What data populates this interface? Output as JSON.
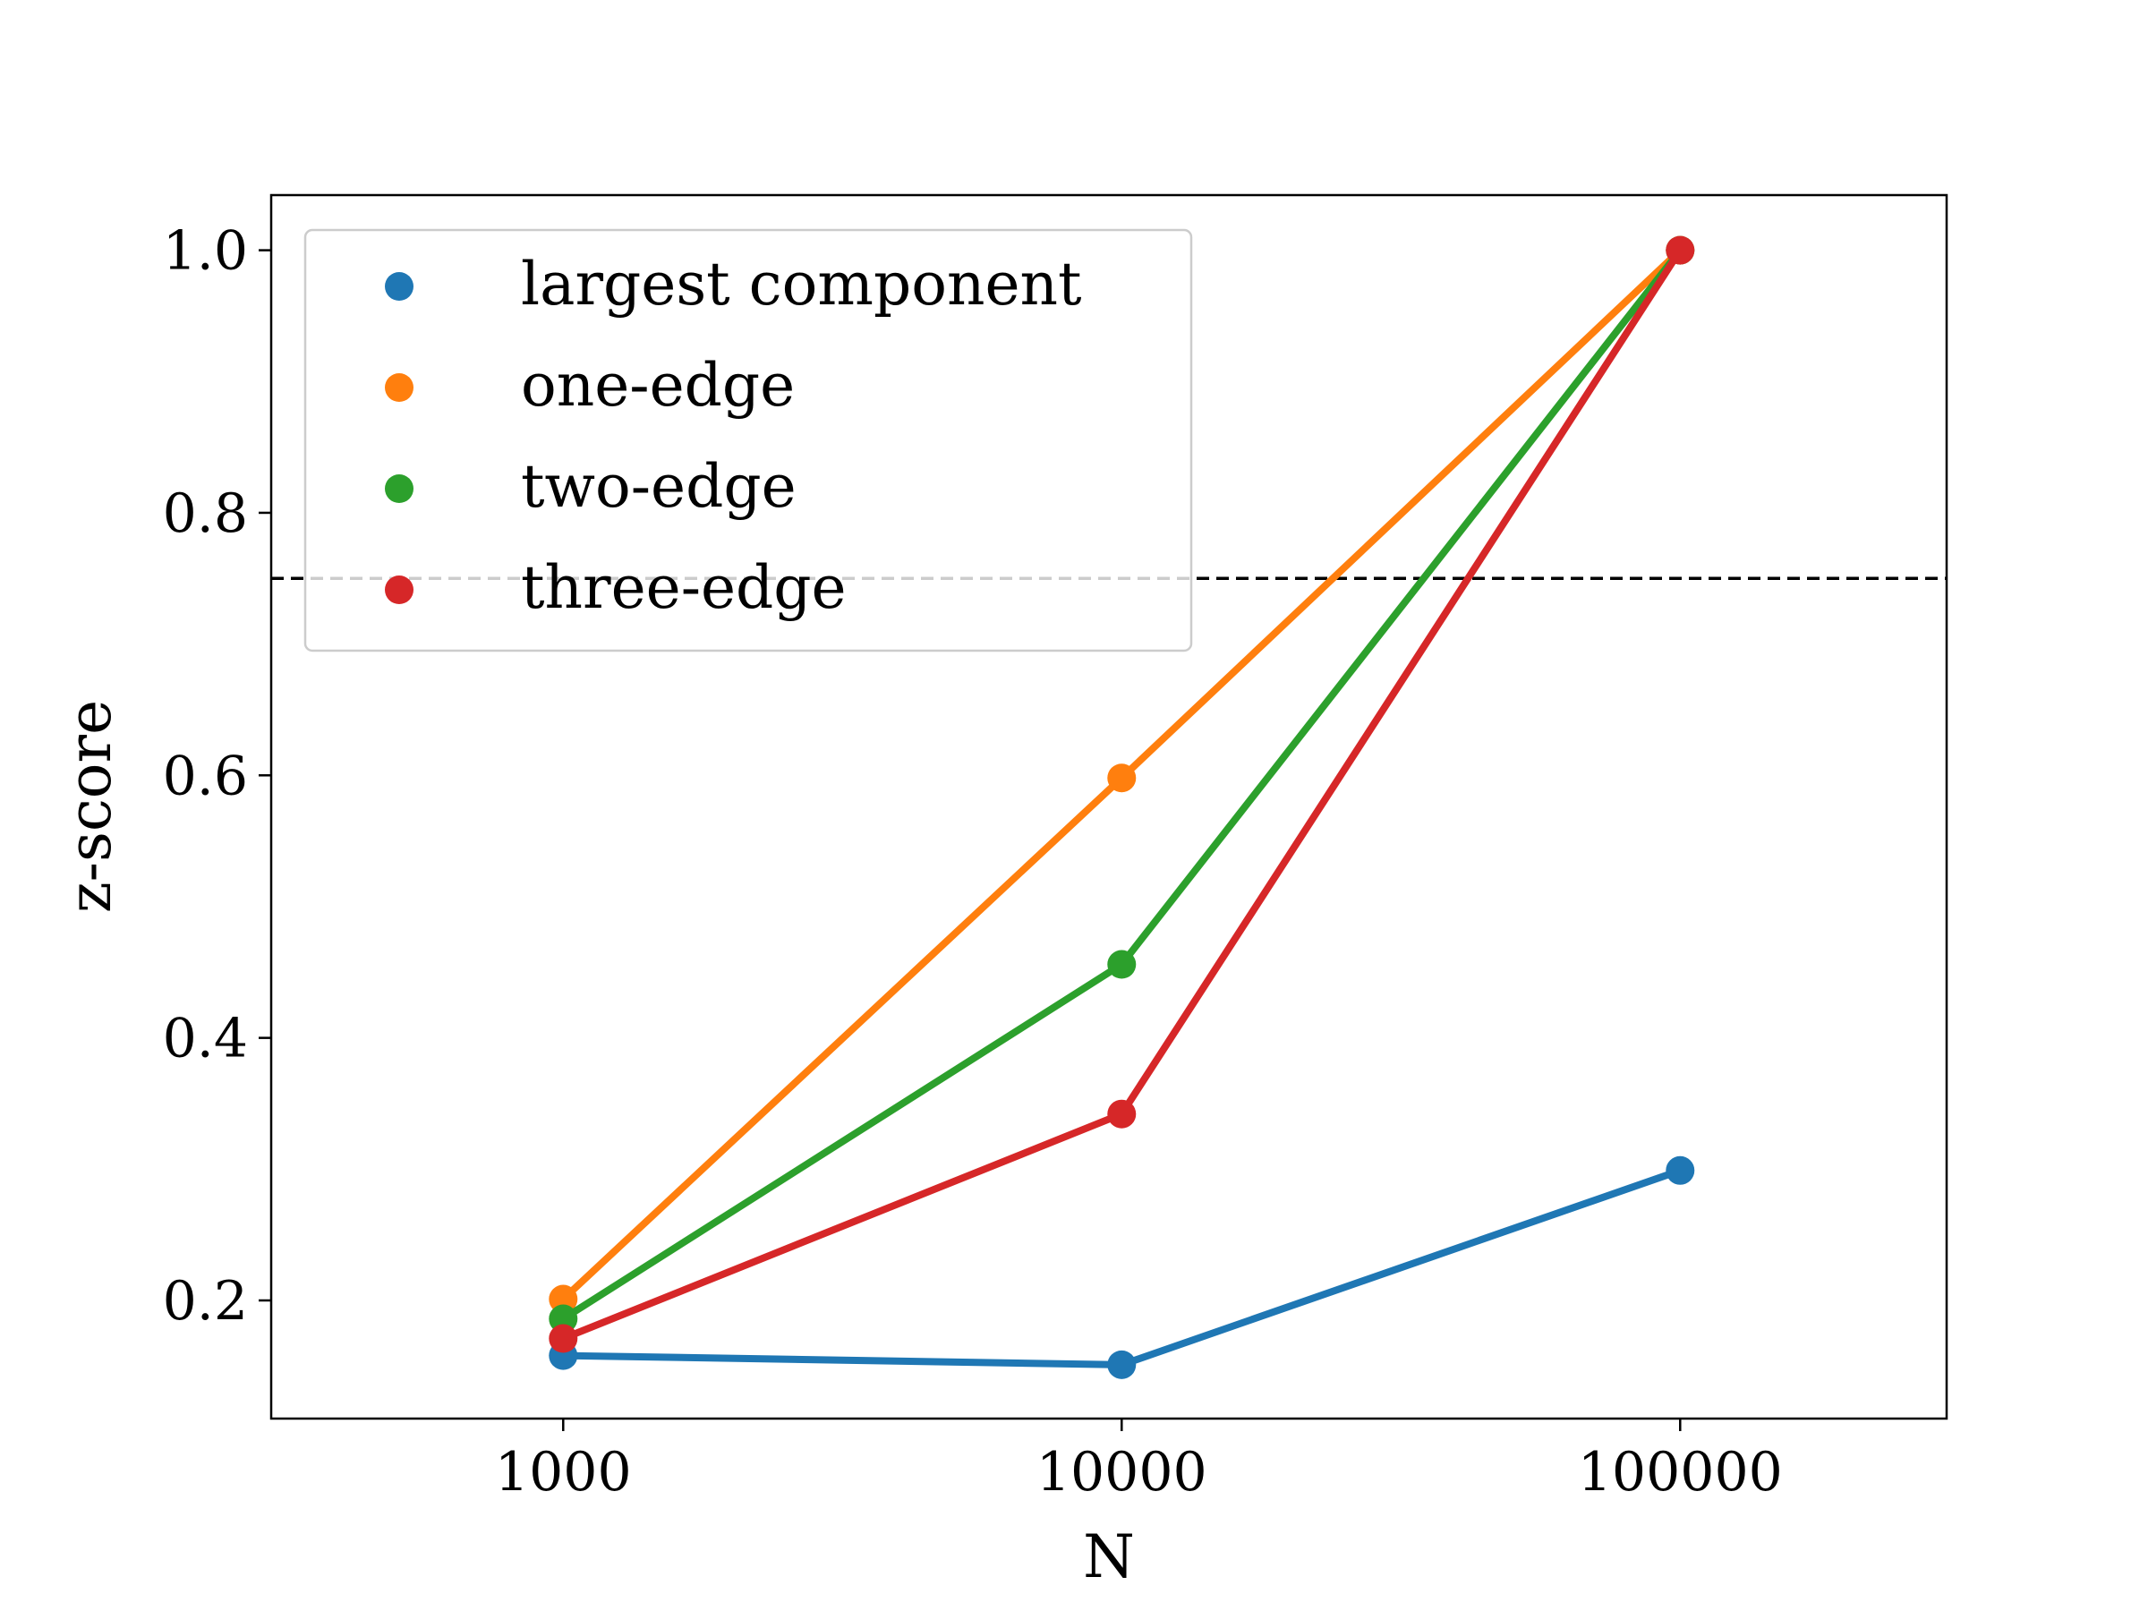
{
  "chart_data": {
    "type": "line",
    "title": "",
    "xlabel": "N",
    "ylabel": "z-score",
    "x_scale": "log",
    "x": [
      1000,
      10000,
      100000
    ],
    "x_tick_labels": [
      "1000",
      "10000",
      "100000"
    ],
    "xlim": [
      300,
      300000
    ],
    "ylim": [
      0.11,
      1.042
    ],
    "y_ticks": [
      0.2,
      0.4,
      0.6,
      0.8,
      1.0
    ],
    "y_tick_labels": [
      "0.2",
      "0.4",
      "0.6",
      "0.8",
      "1.0"
    ],
    "grid": false,
    "legend_position": "top-left",
    "reference_line": {
      "y": 0.75,
      "style": "dashed",
      "color": "#000000"
    },
    "series": [
      {
        "name": "largest component",
        "color": "#1f77b4",
        "values": [
          0.158,
          0.151,
          0.299
        ]
      },
      {
        "name": "one-edge",
        "color": "#ff7f0e",
        "values": [
          0.201,
          0.598,
          1.0
        ]
      },
      {
        "name": "two-edge",
        "color": "#2ca02c",
        "values": [
          0.186,
          0.456,
          1.0
        ]
      },
      {
        "name": "three-edge",
        "color": "#d62728",
        "values": [
          0.171,
          0.342,
          1.0
        ]
      }
    ]
  }
}
